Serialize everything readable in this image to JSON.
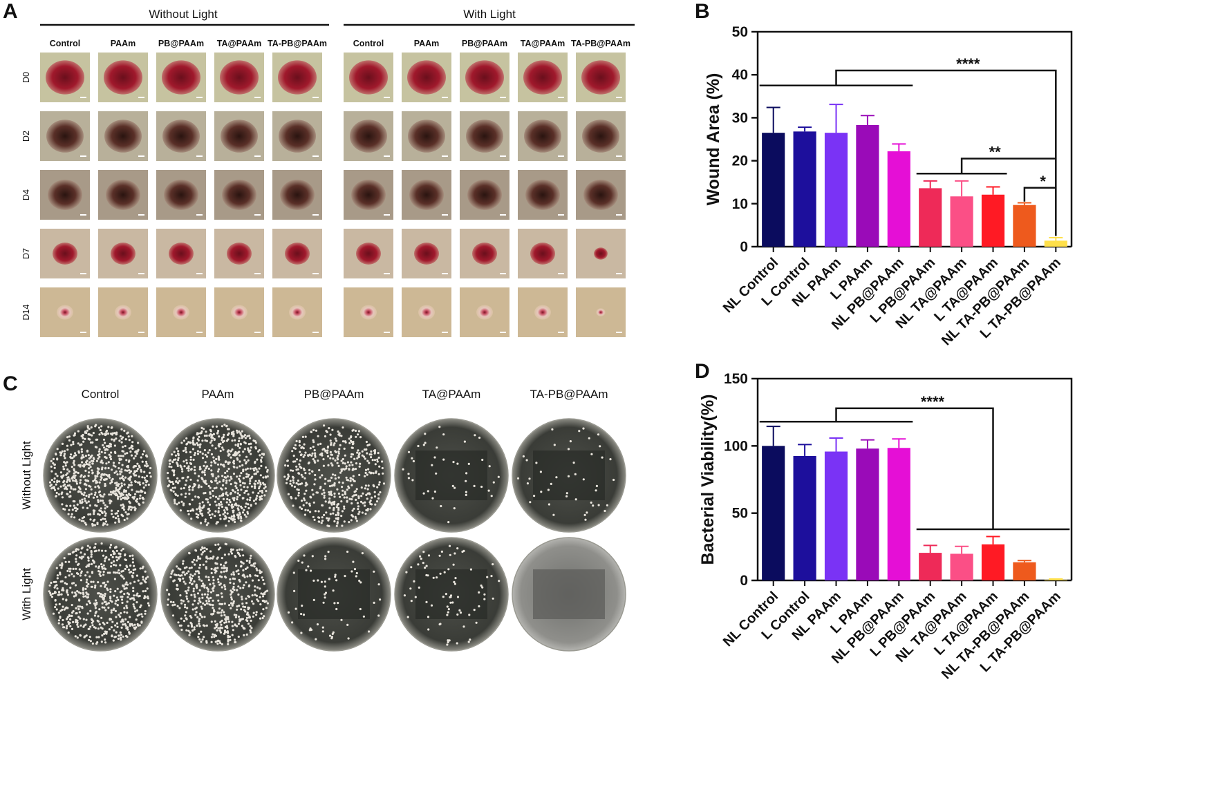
{
  "panel_a": {
    "letter": "A",
    "group_titles": [
      "Without Light",
      "With Light"
    ],
    "columns": [
      "Control",
      "PAAm",
      "PB@PAAm",
      "TA@PAAm",
      "TA-PB@PAAm"
    ],
    "rows": [
      "D0",
      "D2",
      "D4",
      "D7",
      "D14"
    ]
  },
  "panel_c": {
    "letter": "C",
    "columns": [
      "Control",
      "PAAm",
      "PB@PAAm",
      "TA@PAAm",
      "TA-PB@PAAm"
    ],
    "rows": [
      "Without Light",
      "With Light"
    ]
  },
  "colors": [
    "#0b0c5e",
    "#1d0f9c",
    "#7a33f5",
    "#9a0bb8",
    "#e50fd6",
    "#ee2a58",
    "#fb4f86",
    "#ff1a24",
    "#ee5a1d",
    "#ffe04a"
  ],
  "chart_data": [
    {
      "panel": "B",
      "type": "bar",
      "ylabel": "Wound Area (%)",
      "ylim": [
        0,
        50
      ],
      "yticks": [
        0,
        10,
        20,
        30,
        40,
        50
      ],
      "categories": [
        "NL Control",
        "L Control",
        "NL PAAm",
        "L PAAm",
        "NL PB@PAAm",
        "L PB@PAAm",
        "NL TA@PAAm",
        "L TA@PAAm",
        "NL TA-PB@PAAm",
        "L TA-PB@PAAm"
      ],
      "values": [
        26.5,
        26.8,
        26.5,
        28.3,
        22.2,
        13.6,
        11.7,
        12.1,
        9.7,
        1.4
      ],
      "errors": [
        5.9,
        1.0,
        6.6,
        2.2,
        1.7,
        1.7,
        3.6,
        1.8,
        0.5,
        0.7
      ],
      "significance": [
        "****",
        "**",
        "*"
      ]
    },
    {
      "panel": "D",
      "type": "bar",
      "ylabel": "Bacterial Viability(%)",
      "ylim": [
        0,
        150
      ],
      "yticks": [
        0,
        50,
        100,
        150
      ],
      "categories": [
        "NL Control",
        "L Control",
        "NL PAAm",
        "L PAAm",
        "NL PB@PAAm",
        "L PB@PAAm",
        "NL TA@PAAm",
        "L TA@PAAm",
        "NL TA-PB@PAAm",
        "L TA-PB@PAAm"
      ],
      "values": [
        100,
        92.5,
        95.8,
        98,
        98.5,
        20.5,
        19.8,
        26.8,
        13.5,
        0.5
      ],
      "errors": [
        14.5,
        8.5,
        10,
        6.5,
        6.7,
        5.5,
        5.5,
        5.8,
        1.3,
        0.5
      ],
      "significance": [
        "****"
      ]
    }
  ]
}
